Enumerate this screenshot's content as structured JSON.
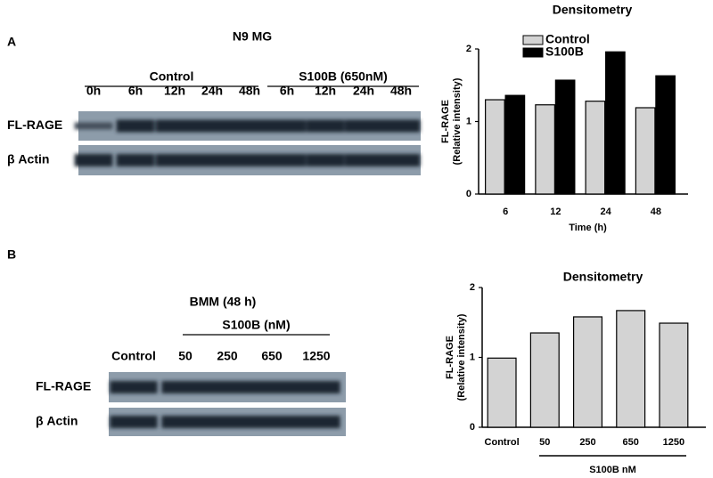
{
  "blot_a": {
    "panel": "A",
    "title": "N9 MG",
    "groups": [
      "Control",
      "S100B (650nM)"
    ],
    "lanes": [
      "0h",
      "6h",
      "12h",
      "24h",
      "48h",
      "6h",
      "12h",
      "24h",
      "48h"
    ],
    "rows": [
      "FL-RAGE",
      "β Actin"
    ]
  },
  "blot_b": {
    "panel": "B",
    "title": "BMM (48 h)",
    "groups": [
      "S100B (nM)"
    ],
    "lanes": [
      "Control",
      "50",
      "250",
      "650",
      "1250"
    ],
    "rows": [
      "FL-RAGE",
      "β Actin"
    ]
  },
  "chart_data": [
    {
      "type": "bar",
      "title": "Densitometry",
      "ylabel": [
        "FL-RAGE",
        "(Relative intensity)"
      ],
      "xlabel": "Time (h)",
      "categories": [
        "6",
        "12",
        "24",
        "48"
      ],
      "series": [
        {
          "name": "Control",
          "color": "#d3d3d3",
          "values": [
            1.3,
            1.23,
            1.28,
            1.19
          ]
        },
        {
          "name": "S100B",
          "color": "#000000",
          "values": [
            1.36,
            1.57,
            1.96,
            1.63
          ]
        }
      ],
      "ylim": [
        0,
        2
      ],
      "yticks": [
        0,
        1,
        2
      ],
      "legend": "top-left"
    },
    {
      "type": "bar",
      "title": "Densitometry",
      "ylabel": [
        "FL-RAGE",
        "(Relative intensity)"
      ],
      "xlabel": "S100B nM",
      "categories": [
        "Control",
        "50",
        "250",
        "650",
        "1250"
      ],
      "series": [
        {
          "color": "#d3d3d3",
          "values": [
            0.99,
            1.35,
            1.58,
            1.67,
            1.49
          ]
        }
      ],
      "ylim": [
        0,
        2
      ],
      "yticks": [
        0,
        1,
        2
      ]
    }
  ]
}
